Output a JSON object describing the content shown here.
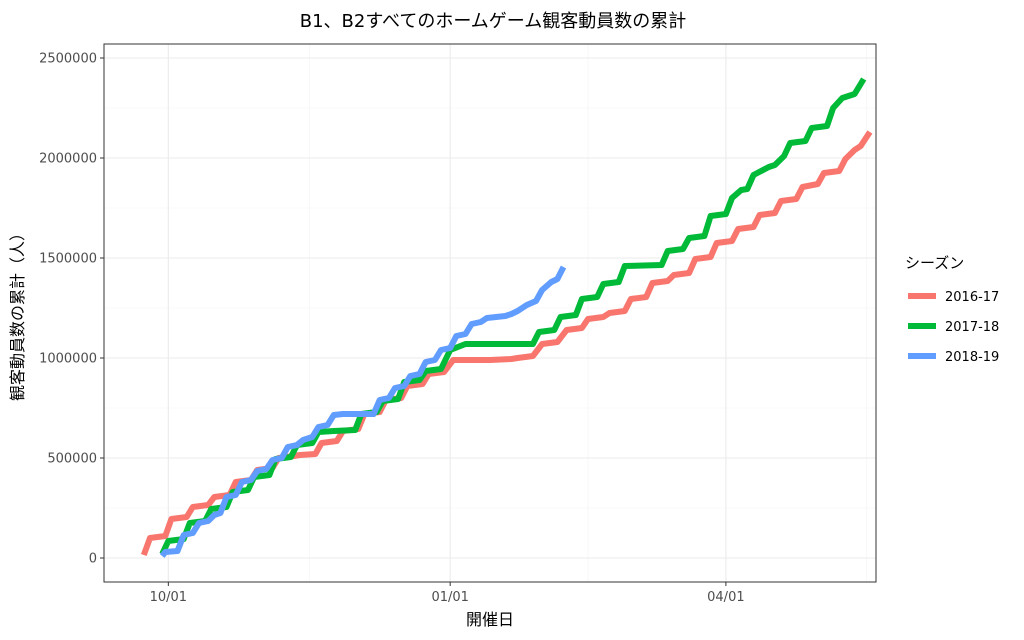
{
  "chart_data": {
    "type": "line",
    "title": "B1、B2すべてのホームゲーム観客動員数の累計",
    "xlabel": "開催日",
    "ylabel": "観客動員数の累計（人）",
    "x_tick_labels": [
      "10/01",
      "01/01",
      "04/01"
    ],
    "x_tick_dates": [
      "2000-10-01",
      "2001-01-01",
      "2001-04-01"
    ],
    "x_range": [
      "2000-09-10",
      "2001-05-20"
    ],
    "ylim": [
      -120000,
      2570000
    ],
    "y_ticks": [
      0,
      500000,
      1000000,
      1500000,
      2000000,
      2500000
    ],
    "grid": true,
    "legend": {
      "title": "シーズン",
      "placement": "right"
    },
    "series": [
      {
        "name": "2016-17",
        "color": "#F8766D",
        "points": [
          [
            "2000-09-23",
            15000
          ],
          [
            "2000-09-25",
            100000
          ],
          [
            "2000-09-30",
            110000
          ],
          [
            "2000-10-02",
            195000
          ],
          [
            "2000-10-07",
            205000
          ],
          [
            "2000-10-09",
            255000
          ],
          [
            "2000-10-14",
            265000
          ],
          [
            "2000-10-16",
            305000
          ],
          [
            "2000-10-21",
            315000
          ],
          [
            "2000-10-23",
            380000
          ],
          [
            "2000-10-28",
            390000
          ],
          [
            "2000-10-30",
            440000
          ],
          [
            "2000-11-04",
            450000
          ],
          [
            "2000-11-06",
            500000
          ],
          [
            "2000-11-11",
            510000
          ],
          [
            "2000-11-13",
            515000
          ],
          [
            "2000-11-18",
            520000
          ],
          [
            "2000-11-20",
            575000
          ],
          [
            "2000-11-25",
            585000
          ],
          [
            "2000-11-27",
            635000
          ],
          [
            "2000-12-02",
            645000
          ],
          [
            "2000-12-04",
            720000
          ],
          [
            "2000-12-09",
            730000
          ],
          [
            "2000-12-11",
            790000
          ],
          [
            "2000-12-16",
            800000
          ],
          [
            "2000-12-18",
            860000
          ],
          [
            "2000-12-23",
            870000
          ],
          [
            "2000-12-25",
            920000
          ],
          [
            "2000-12-30",
            930000
          ],
          [
            "2001-01-02",
            990000
          ],
          [
            "2001-01-07",
            990000
          ],
          [
            "2001-01-14",
            990000
          ],
          [
            "2001-01-21",
            995000
          ],
          [
            "2001-01-23",
            1000000
          ],
          [
            "2001-01-28",
            1010000
          ],
          [
            "2001-01-31",
            1070000
          ],
          [
            "2001-02-05",
            1080000
          ],
          [
            "2001-02-08",
            1140000
          ],
          [
            "2001-02-13",
            1150000
          ],
          [
            "2001-02-15",
            1195000
          ],
          [
            "2001-02-20",
            1205000
          ],
          [
            "2001-02-22",
            1225000
          ],
          [
            "2001-02-27",
            1235000
          ],
          [
            "2001-03-01",
            1295000
          ],
          [
            "2001-03-06",
            1305000
          ],
          [
            "2001-03-08",
            1375000
          ],
          [
            "2001-03-13",
            1385000
          ],
          [
            "2001-03-15",
            1415000
          ],
          [
            "2001-03-20",
            1425000
          ],
          [
            "2001-03-22",
            1495000
          ],
          [
            "2001-03-27",
            1505000
          ],
          [
            "2001-03-29",
            1575000
          ],
          [
            "2001-04-03",
            1585000
          ],
          [
            "2001-04-05",
            1645000
          ],
          [
            "2001-04-10",
            1655000
          ],
          [
            "2001-04-12",
            1715000
          ],
          [
            "2001-04-17",
            1725000
          ],
          [
            "2001-04-19",
            1785000
          ],
          [
            "2001-04-24",
            1795000
          ],
          [
            "2001-04-26",
            1855000
          ],
          [
            "2001-05-01",
            1870000
          ],
          [
            "2001-05-03",
            1925000
          ],
          [
            "2001-05-08",
            1935000
          ],
          [
            "2001-05-10",
            1995000
          ],
          [
            "2001-05-13",
            2040000
          ],
          [
            "2001-05-15",
            2060000
          ],
          [
            "2001-05-18",
            2130000
          ]
        ]
      },
      {
        "name": "2017-18",
        "color": "#00BA38",
        "points": [
          [
            "2000-09-29",
            20000
          ],
          [
            "2000-10-01",
            85000
          ],
          [
            "2000-10-06",
            95000
          ],
          [
            "2000-10-08",
            175000
          ],
          [
            "2000-10-13",
            185000
          ],
          [
            "2000-10-15",
            245000
          ],
          [
            "2000-10-20",
            255000
          ],
          [
            "2000-10-22",
            330000
          ],
          [
            "2000-10-27",
            340000
          ],
          [
            "2000-10-29",
            405000
          ],
          [
            "2000-11-03",
            415000
          ],
          [
            "2000-11-05",
            495000
          ],
          [
            "2000-11-10",
            505000
          ],
          [
            "2000-11-12",
            565000
          ],
          [
            "2000-11-17",
            575000
          ],
          [
            "2000-11-19",
            630000
          ],
          [
            "2000-11-24",
            635000
          ],
          [
            "2000-12-01",
            640000
          ],
          [
            "2000-12-03",
            720000
          ],
          [
            "2000-12-08",
            730000
          ],
          [
            "2000-12-10",
            785000
          ],
          [
            "2000-12-15",
            795000
          ],
          [
            "2000-12-17",
            880000
          ],
          [
            "2000-12-22",
            890000
          ],
          [
            "2000-12-24",
            935000
          ],
          [
            "2000-12-29",
            945000
          ],
          [
            "2001-01-01",
            1040000
          ],
          [
            "2001-01-06",
            1070000
          ],
          [
            "2001-01-28",
            1070000
          ],
          [
            "2001-01-30",
            1130000
          ],
          [
            "2001-02-04",
            1140000
          ],
          [
            "2001-02-06",
            1205000
          ],
          [
            "2001-02-11",
            1215000
          ],
          [
            "2001-02-13",
            1295000
          ],
          [
            "2001-02-18",
            1305000
          ],
          [
            "2001-02-20",
            1370000
          ],
          [
            "2001-02-25",
            1380000
          ],
          [
            "2001-02-27",
            1460000
          ],
          [
            "2001-03-11",
            1465000
          ],
          [
            "2001-03-13",
            1535000
          ],
          [
            "2001-03-18",
            1545000
          ],
          [
            "2001-03-20",
            1600000
          ],
          [
            "2001-03-25",
            1610000
          ],
          [
            "2001-03-27",
            1710000
          ],
          [
            "2001-04-01",
            1720000
          ],
          [
            "2001-04-03",
            1800000
          ],
          [
            "2001-04-06",
            1840000
          ],
          [
            "2001-04-08",
            1845000
          ],
          [
            "2001-04-10",
            1915000
          ],
          [
            "2001-04-15",
            1955000
          ],
          [
            "2001-04-17",
            1965000
          ],
          [
            "2001-04-20",
            2010000
          ],
          [
            "2001-04-22",
            2075000
          ],
          [
            "2001-04-27",
            2085000
          ],
          [
            "2001-04-29",
            2150000
          ],
          [
            "2001-05-04",
            2160000
          ],
          [
            "2001-05-06",
            2250000
          ],
          [
            "2001-05-09",
            2300000
          ],
          [
            "2001-05-13",
            2320000
          ],
          [
            "2001-05-16",
            2395000
          ]
        ]
      },
      {
        "name": "2018-19",
        "color": "#619CFF",
        "points": [
          [
            "2000-09-29",
            10000
          ],
          [
            "2000-09-30",
            30000
          ],
          [
            "2000-10-04",
            35000
          ],
          [
            "2000-10-06",
            115000
          ],
          [
            "2000-10-09",
            125000
          ],
          [
            "2000-10-11",
            175000
          ],
          [
            "2000-10-14",
            185000
          ],
          [
            "2000-10-16",
            215000
          ],
          [
            "2000-10-18",
            225000
          ],
          [
            "2000-10-20",
            305000
          ],
          [
            "2000-10-23",
            315000
          ],
          [
            "2000-10-25",
            380000
          ],
          [
            "2000-10-28",
            390000
          ],
          [
            "2000-10-30",
            435000
          ],
          [
            "2000-11-02",
            445000
          ],
          [
            "2000-11-04",
            490000
          ],
          [
            "2000-11-07",
            500000
          ],
          [
            "2000-11-09",
            555000
          ],
          [
            "2000-11-12",
            565000
          ],
          [
            "2000-11-14",
            590000
          ],
          [
            "2000-11-17",
            605000
          ],
          [
            "2000-11-19",
            655000
          ],
          [
            "2000-11-22",
            665000
          ],
          [
            "2000-11-24",
            715000
          ],
          [
            "2000-11-27",
            720000
          ],
          [
            "2000-12-07",
            720000
          ],
          [
            "2000-12-09",
            790000
          ],
          [
            "2000-12-12",
            800000
          ],
          [
            "2000-12-14",
            850000
          ],
          [
            "2000-12-17",
            860000
          ],
          [
            "2000-12-19",
            910000
          ],
          [
            "2000-12-22",
            920000
          ],
          [
            "2000-12-24",
            980000
          ],
          [
            "2000-12-27",
            990000
          ],
          [
            "2000-12-29",
            1040000
          ],
          [
            "2001-01-01",
            1050000
          ],
          [
            "2001-01-03",
            1110000
          ],
          [
            "2001-01-06",
            1120000
          ],
          [
            "2001-01-08",
            1170000
          ],
          [
            "2001-01-11",
            1180000
          ],
          [
            "2001-01-13",
            1200000
          ],
          [
            "2001-01-16",
            1205000
          ],
          [
            "2001-01-19",
            1210000
          ],
          [
            "2001-01-21",
            1220000
          ],
          [
            "2001-01-23",
            1235000
          ],
          [
            "2001-01-26",
            1265000
          ],
          [
            "2001-01-29",
            1285000
          ],
          [
            "2001-01-31",
            1340000
          ],
          [
            "2001-02-03",
            1380000
          ],
          [
            "2001-02-05",
            1395000
          ],
          [
            "2001-02-07",
            1455000
          ]
        ]
      }
    ]
  }
}
